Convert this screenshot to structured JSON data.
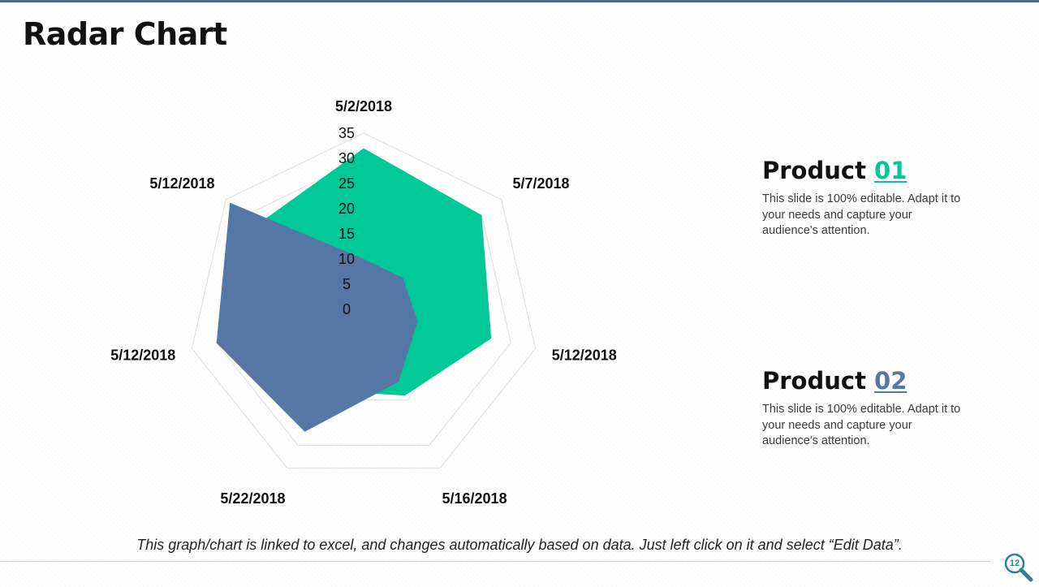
{
  "slide": {
    "title": "Radar Chart",
    "footer_note": "This graph/chart is linked to excel, and changes automatically based on data. Just left click on it and select “Edit Data”.",
    "page_number": "12"
  },
  "products": [
    {
      "label": "Product",
      "number": "01",
      "color": "#00c896",
      "description": "This slide is 100% editable. Adapt it to your needs and capture your audience's attention."
    },
    {
      "label": "Product",
      "number": "02",
      "color": "#5577a5",
      "description": "This slide is 100% editable. Adapt it to your needs and capture your audience's attention."
    }
  ],
  "chart_data": {
    "type": "radar",
    "categories": [
      "5/2/2018",
      "5/7/2018",
      "5/12/2018",
      "5/16/2018",
      "5/22/2018",
      "5/12/2018",
      "5/12/2018"
    ],
    "series": [
      {
        "name": "Product 01",
        "color": "#00c896",
        "values": [
          32,
          30,
          26,
          19,
          18,
          21,
          27
        ]
      },
      {
        "name": "Product 02",
        "color": "#5577a5",
        "values": [
          10,
          10,
          11,
          16,
          27,
          30,
          34
        ]
      }
    ],
    "radial_ticks": [
      0,
      5,
      10,
      15,
      20,
      25,
      30,
      35
    ],
    "rmax": 35,
    "gridline_levels": [
      20,
      30,
      35
    ]
  }
}
